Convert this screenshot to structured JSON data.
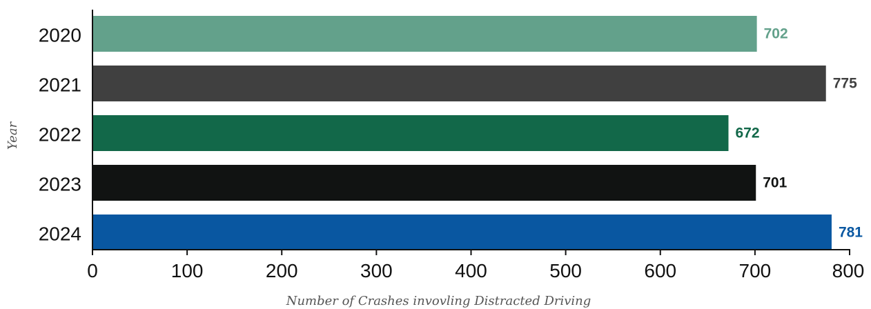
{
  "chart_data": {
    "type": "bar",
    "orientation": "horizontal",
    "categories": [
      "2020",
      "2021",
      "2022",
      "2023",
      "2024"
    ],
    "values": [
      702,
      775,
      672,
      701,
      781
    ],
    "bar_colors": [
      "#63a18b",
      "#404040",
      "#126849",
      "#111312",
      "#0957a1"
    ],
    "xlabel": "Number of Crashes invovling Distracted Driving",
    "ylabel": "Year",
    "xlim": [
      0,
      800
    ],
    "xticks": [
      0,
      100,
      200,
      300,
      400,
      500,
      600,
      700,
      800
    ],
    "grid": false,
    "data_labels": true
  }
}
